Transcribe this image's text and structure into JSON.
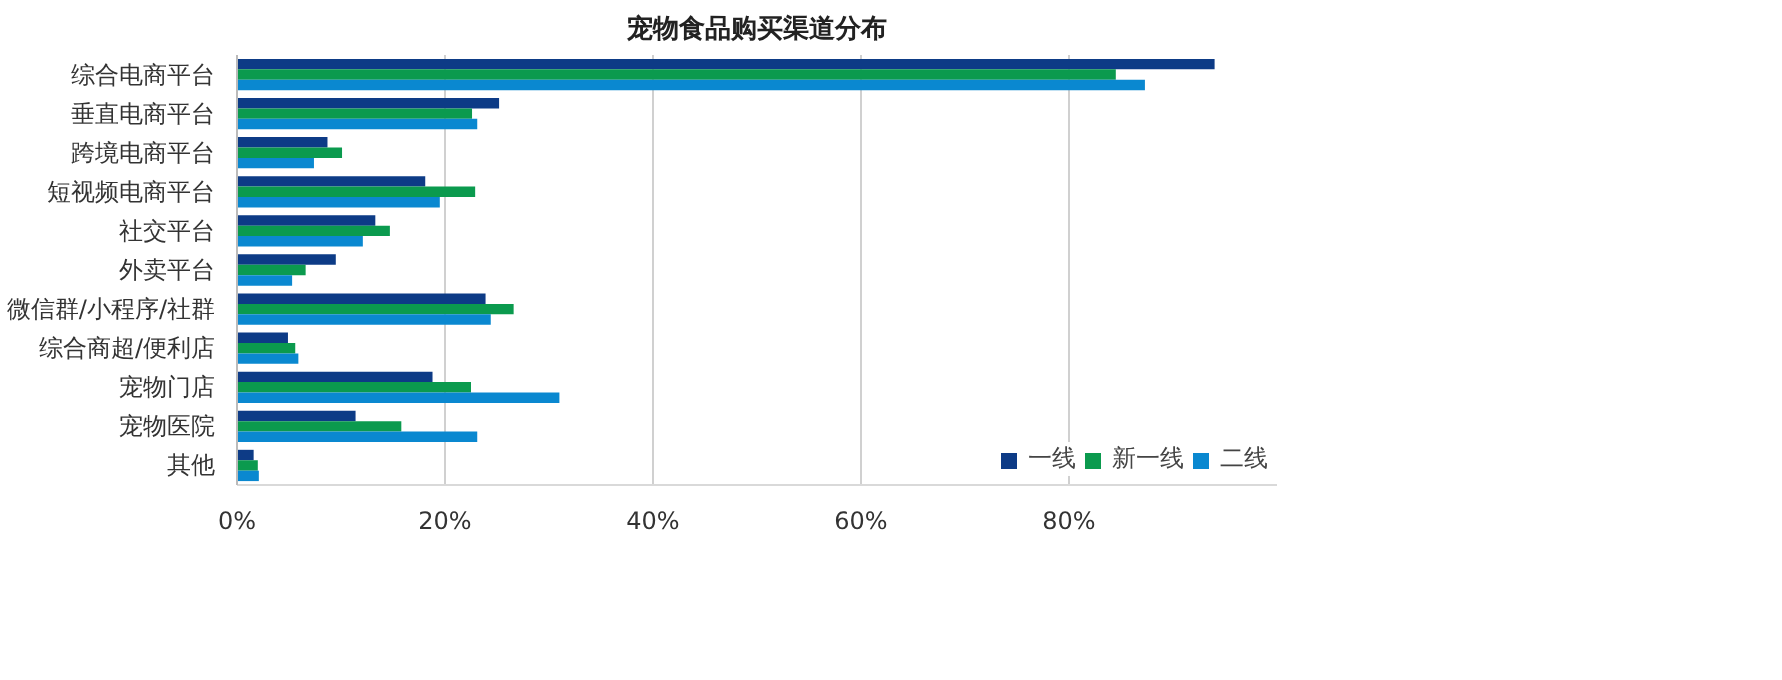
{
  "chart_data": {
    "type": "bar",
    "orientation": "horizontal",
    "title": "宠物食品购买渠道分布",
    "categories": [
      "综合电商平台",
      "垂直电商平台",
      "跨境电商平台",
      "短视频电商平台",
      "社交平台",
      "外卖平台",
      "微信群/小程序/社群",
      "综合商超/便利店",
      "宠物门店",
      "宠物医院",
      "其他"
    ],
    "series": [
      {
        "name": "一线",
        "color": "#0d3b86",
        "values": [
          94.0,
          25.2,
          8.7,
          18.1,
          13.3,
          9.5,
          23.9,
          4.9,
          18.8,
          11.4,
          1.6
        ]
      },
      {
        "name": "新一线",
        "color": "#0b9a4e",
        "values": [
          84.5,
          22.6,
          10.1,
          22.9,
          14.7,
          6.6,
          26.6,
          5.6,
          22.5,
          15.8,
          2.0
        ]
      },
      {
        "name": "二线",
        "color": "#0a88d0",
        "values": [
          87.3,
          23.1,
          7.4,
          19.5,
          12.1,
          5.3,
          24.4,
          5.9,
          31.0,
          23.1,
          2.1
        ]
      }
    ],
    "xlim": [
      0,
      100
    ],
    "xticks": [
      {
        "value": 0,
        "label": "0%"
      },
      {
        "value": 20,
        "label": "20%"
      },
      {
        "value": 40,
        "label": "40%"
      },
      {
        "value": 60,
        "label": "60%"
      },
      {
        "value": 80,
        "label": "80%"
      }
    ],
    "grid": "x",
    "legend": "bottom right"
  }
}
